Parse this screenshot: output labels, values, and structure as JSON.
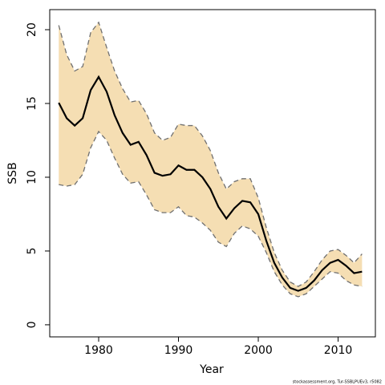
{
  "chart_data": {
    "type": "line",
    "x_label": "Year",
    "y_label": "SSB",
    "note": "stockassessment.org, Tur-SSBLPUEv3, r5082",
    "x": [
      1975,
      1976,
      1977,
      1978,
      1979,
      1980,
      1981,
      1982,
      1983,
      1984,
      1985,
      1986,
      1987,
      1988,
      1989,
      1990,
      1991,
      1992,
      1993,
      1994,
      1995,
      1996,
      1997,
      1998,
      1999,
      2000,
      2001,
      2002,
      2003,
      2004,
      2005,
      2006,
      2007,
      2008,
      2009,
      2010,
      2011,
      2012,
      2013
    ],
    "band_color": "#f5deb3",
    "series": [
      {
        "name": "upper",
        "color": "#707070",
        "dashed": true,
        "values": [
          20.3,
          18.3,
          17.2,
          17.5,
          19.8,
          20.5,
          18.8,
          17.2,
          16.0,
          15.1,
          15.2,
          14.3,
          13.0,
          12.5,
          12.7,
          13.6,
          13.5,
          13.5,
          12.8,
          11.8,
          10.3,
          9.2,
          9.7,
          9.9,
          9.9,
          8.6,
          6.6,
          4.9,
          3.7,
          2.9,
          2.6,
          2.9,
          3.6,
          4.4,
          5.0,
          5.1,
          4.7,
          4.2,
          4.8
        ]
      },
      {
        "name": "estimate",
        "color": "#000000",
        "dashed": false,
        "values": [
          15.05,
          14.0,
          13.5,
          14.0,
          15.9,
          16.8,
          15.8,
          14.2,
          13.0,
          12.2,
          12.4,
          11.5,
          10.3,
          10.1,
          10.2,
          10.8,
          10.5,
          10.5,
          10.0,
          9.2,
          8.0,
          7.2,
          7.9,
          8.4,
          8.3,
          7.5,
          5.7,
          4.2,
          3.2,
          2.5,
          2.3,
          2.5,
          3.0,
          3.7,
          4.2,
          4.4,
          4.0,
          3.5,
          3.6
        ]
      },
      {
        "name": "lower",
        "color": "#707070",
        "dashed": true,
        "values": [
          9.5,
          9.4,
          9.5,
          10.2,
          12.0,
          13.1,
          12.5,
          11.3,
          10.2,
          9.6,
          9.7,
          8.8,
          7.8,
          7.6,
          7.6,
          8.0,
          7.4,
          7.3,
          6.9,
          6.4,
          5.6,
          5.3,
          6.2,
          6.7,
          6.5,
          6.0,
          4.9,
          3.6,
          2.7,
          2.1,
          1.9,
          2.1,
          2.6,
          3.1,
          3.6,
          3.5,
          3.0,
          2.7,
          2.6
        ]
      }
    ],
    "xlim": [
      1973.87,
      2014.67
    ],
    "ylim": [
      -0.82,
      21.36
    ],
    "xticks": [
      1980,
      1990,
      2000,
      2010
    ],
    "yticks": [
      0,
      5,
      10,
      15,
      20
    ]
  }
}
